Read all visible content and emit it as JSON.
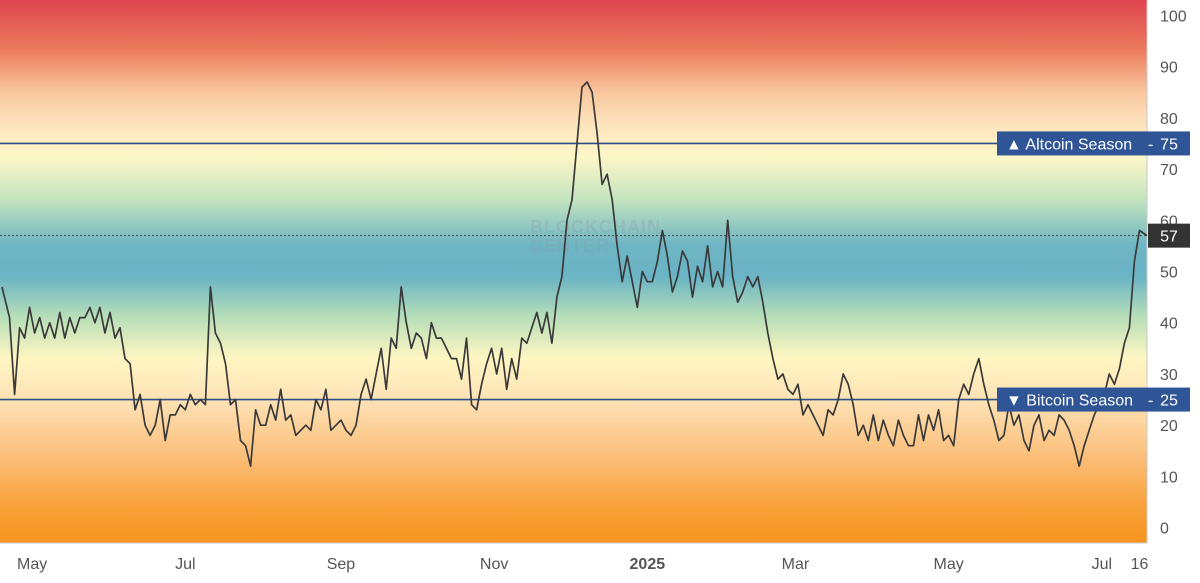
{
  "chart_data": {
    "type": "line",
    "x_start": "2024-04-19",
    "x_end": "2025-07-19",
    "ylim": [
      -3,
      103
    ],
    "y_ticks": [
      0,
      10,
      20,
      30,
      40,
      50,
      60,
      70,
      80,
      90,
      100
    ],
    "x_tick_labels": [
      {
        "date": "2024-05-01",
        "label": "May",
        "bold": false
      },
      {
        "date": "2024-07-01",
        "label": "Jul",
        "bold": false
      },
      {
        "date": "2024-09-01",
        "label": "Sep",
        "bold": false
      },
      {
        "date": "2024-11-01",
        "label": "Nov",
        "bold": false
      },
      {
        "date": "2025-01-01",
        "label": "2025",
        "bold": true
      },
      {
        "date": "2025-03-01",
        "label": "Mar",
        "bold": false
      },
      {
        "date": "2025-05-01",
        "label": "May",
        "bold": false
      },
      {
        "date": "2025-07-01",
        "label": "Jul",
        "bold": false
      },
      {
        "date": "2025-07-16",
        "label": "16",
        "bold": false
      }
    ],
    "thresholds": [
      {
        "name": "altcoin-season",
        "label": "▲ Altcoin Season",
        "value": 75,
        "value_label": "75"
      },
      {
        "name": "bitcoin-season",
        "label": "▼ Bitcoin Season",
        "value": 25,
        "value_label": "25"
      }
    ],
    "current_value": 57,
    "current_value_label": "57",
    "watermark": [
      "BLOCKCHAIN",
      "CENTER"
    ],
    "series": [
      {
        "points": [
          [
            "2024-04-19",
            47
          ],
          [
            "2024-04-22",
            41
          ],
          [
            "2024-04-24",
            26
          ],
          [
            "2024-04-26",
            39
          ],
          [
            "2024-04-28",
            37
          ],
          [
            "2024-04-30",
            43
          ],
          [
            "2024-05-02",
            38
          ],
          [
            "2024-05-04",
            41
          ],
          [
            "2024-05-06",
            37
          ],
          [
            "2024-05-08",
            40
          ],
          [
            "2024-05-10",
            37
          ],
          [
            "2024-05-12",
            42
          ],
          [
            "2024-05-14",
            37
          ],
          [
            "2024-05-16",
            41
          ],
          [
            "2024-05-18",
            38
          ],
          [
            "2024-05-20",
            41
          ],
          [
            "2024-05-22",
            41
          ],
          [
            "2024-05-24",
            43
          ],
          [
            "2024-05-26",
            40
          ],
          [
            "2024-05-28",
            43
          ],
          [
            "2024-05-30",
            38
          ],
          [
            "2024-06-01",
            42
          ],
          [
            "2024-06-03",
            37
          ],
          [
            "2024-06-05",
            39
          ],
          [
            "2024-06-07",
            33
          ],
          [
            "2024-06-09",
            32
          ],
          [
            "2024-06-11",
            23
          ],
          [
            "2024-06-13",
            26
          ],
          [
            "2024-06-15",
            20
          ],
          [
            "2024-06-17",
            18
          ],
          [
            "2024-06-19",
            20
          ],
          [
            "2024-06-21",
            25
          ],
          [
            "2024-06-23",
            17
          ],
          [
            "2024-06-25",
            22
          ],
          [
            "2024-06-27",
            22
          ],
          [
            "2024-06-29",
            24
          ],
          [
            "2024-07-01",
            23
          ],
          [
            "2024-07-03",
            26
          ],
          [
            "2024-07-05",
            24
          ],
          [
            "2024-07-07",
            25
          ],
          [
            "2024-07-09",
            24
          ],
          [
            "2024-07-11",
            47
          ],
          [
            "2024-07-13",
            38
          ],
          [
            "2024-07-15",
            36
          ],
          [
            "2024-07-17",
            32
          ],
          [
            "2024-07-19",
            24
          ],
          [
            "2024-07-21",
            25
          ],
          [
            "2024-07-23",
            17
          ],
          [
            "2024-07-25",
            16
          ],
          [
            "2024-07-27",
            12
          ],
          [
            "2024-07-29",
            23
          ],
          [
            "2024-07-31",
            20
          ],
          [
            "2024-08-02",
            20
          ],
          [
            "2024-08-04",
            24
          ],
          [
            "2024-08-06",
            21
          ],
          [
            "2024-08-08",
            27
          ],
          [
            "2024-08-10",
            21
          ],
          [
            "2024-08-12",
            22
          ],
          [
            "2024-08-14",
            18
          ],
          [
            "2024-08-16",
            19
          ],
          [
            "2024-08-18",
            20
          ],
          [
            "2024-08-20",
            19
          ],
          [
            "2024-08-22",
            25
          ],
          [
            "2024-08-24",
            23
          ],
          [
            "2024-08-26",
            27
          ],
          [
            "2024-08-28",
            19
          ],
          [
            "2024-08-30",
            20
          ],
          [
            "2024-09-01",
            21
          ],
          [
            "2024-09-03",
            19
          ],
          [
            "2024-09-05",
            18
          ],
          [
            "2024-09-07",
            20
          ],
          [
            "2024-09-09",
            26
          ],
          [
            "2024-09-11",
            29
          ],
          [
            "2024-09-13",
            25
          ],
          [
            "2024-09-15",
            30
          ],
          [
            "2024-09-17",
            35
          ],
          [
            "2024-09-19",
            27
          ],
          [
            "2024-09-21",
            37
          ],
          [
            "2024-09-23",
            35
          ],
          [
            "2024-09-25",
            47
          ],
          [
            "2024-09-27",
            40
          ],
          [
            "2024-09-29",
            35
          ],
          [
            "2024-10-01",
            38
          ],
          [
            "2024-10-03",
            37
          ],
          [
            "2024-10-05",
            33
          ],
          [
            "2024-10-07",
            40
          ],
          [
            "2024-10-09",
            37
          ],
          [
            "2024-10-11",
            37
          ],
          [
            "2024-10-13",
            35
          ],
          [
            "2024-10-15",
            33
          ],
          [
            "2024-10-17",
            33
          ],
          [
            "2024-10-19",
            29
          ],
          [
            "2024-10-21",
            37
          ],
          [
            "2024-10-23",
            24
          ],
          [
            "2024-10-25",
            23
          ],
          [
            "2024-10-27",
            28
          ],
          [
            "2024-10-29",
            32
          ],
          [
            "2024-10-31",
            35
          ],
          [
            "2024-11-02",
            30
          ],
          [
            "2024-11-04",
            35
          ],
          [
            "2024-11-06",
            27
          ],
          [
            "2024-11-08",
            33
          ],
          [
            "2024-11-10",
            29
          ],
          [
            "2024-11-12",
            37
          ],
          [
            "2024-11-14",
            36
          ],
          [
            "2024-11-16",
            39
          ],
          [
            "2024-11-18",
            42
          ],
          [
            "2024-11-20",
            38
          ],
          [
            "2024-11-22",
            42
          ],
          [
            "2024-11-24",
            36
          ],
          [
            "2024-11-26",
            45
          ],
          [
            "2024-11-28",
            49
          ],
          [
            "2024-11-30",
            60
          ],
          [
            "2024-12-02",
            64
          ],
          [
            "2024-12-04",
            75
          ],
          [
            "2024-12-06",
            86
          ],
          [
            "2024-12-08",
            87
          ],
          [
            "2024-12-10",
            85
          ],
          [
            "2024-12-12",
            77
          ],
          [
            "2024-12-14",
            67
          ],
          [
            "2024-12-16",
            69
          ],
          [
            "2024-12-18",
            64
          ],
          [
            "2024-12-20",
            55
          ],
          [
            "2024-12-22",
            48
          ],
          [
            "2024-12-24",
            53
          ],
          [
            "2024-12-26",
            48
          ],
          [
            "2024-12-28",
            43
          ],
          [
            "2024-12-30",
            50
          ],
          [
            "2025-01-01",
            48
          ],
          [
            "2025-01-03",
            48
          ],
          [
            "2025-01-05",
            52
          ],
          [
            "2025-01-07",
            58
          ],
          [
            "2025-01-09",
            53
          ],
          [
            "2025-01-11",
            46
          ],
          [
            "2025-01-13",
            49
          ],
          [
            "2025-01-15",
            54
          ],
          [
            "2025-01-17",
            52
          ],
          [
            "2025-01-19",
            45
          ],
          [
            "2025-01-21",
            51
          ],
          [
            "2025-01-23",
            48
          ],
          [
            "2025-01-25",
            55
          ],
          [
            "2025-01-27",
            47
          ],
          [
            "2025-01-29",
            50
          ],
          [
            "2025-01-31",
            47
          ],
          [
            "2025-02-02",
            60
          ],
          [
            "2025-02-04",
            49
          ],
          [
            "2025-02-06",
            44
          ],
          [
            "2025-02-08",
            46
          ],
          [
            "2025-02-10",
            49
          ],
          [
            "2025-02-12",
            47
          ],
          [
            "2025-02-14",
            49
          ],
          [
            "2025-02-16",
            44
          ],
          [
            "2025-02-18",
            38
          ],
          [
            "2025-02-20",
            33
          ],
          [
            "2025-02-22",
            29
          ],
          [
            "2025-02-24",
            30
          ],
          [
            "2025-02-26",
            27
          ],
          [
            "2025-02-28",
            26
          ],
          [
            "2025-03-02",
            28
          ],
          [
            "2025-03-04",
            22
          ],
          [
            "2025-03-06",
            24
          ],
          [
            "2025-03-08",
            22
          ],
          [
            "2025-03-10",
            20
          ],
          [
            "2025-03-12",
            18
          ],
          [
            "2025-03-14",
            23
          ],
          [
            "2025-03-16",
            22
          ],
          [
            "2025-03-18",
            25
          ],
          [
            "2025-03-20",
            30
          ],
          [
            "2025-03-22",
            28
          ],
          [
            "2025-03-24",
            24
          ],
          [
            "2025-03-26",
            18
          ],
          [
            "2025-03-28",
            20
          ],
          [
            "2025-03-30",
            17
          ],
          [
            "2025-04-01",
            22
          ],
          [
            "2025-04-03",
            17
          ],
          [
            "2025-04-05",
            21
          ],
          [
            "2025-04-07",
            18
          ],
          [
            "2025-04-09",
            16
          ],
          [
            "2025-04-11",
            21
          ],
          [
            "2025-04-13",
            18
          ],
          [
            "2025-04-15",
            16
          ],
          [
            "2025-04-17",
            16
          ],
          [
            "2025-04-19",
            22
          ],
          [
            "2025-04-21",
            17
          ],
          [
            "2025-04-23",
            22
          ],
          [
            "2025-04-25",
            19
          ],
          [
            "2025-04-27",
            23
          ],
          [
            "2025-04-29",
            17
          ],
          [
            "2025-05-01",
            18
          ],
          [
            "2025-05-03",
            16
          ],
          [
            "2025-05-05",
            25
          ],
          [
            "2025-05-07",
            28
          ],
          [
            "2025-05-09",
            26
          ],
          [
            "2025-05-11",
            30
          ],
          [
            "2025-05-13",
            33
          ],
          [
            "2025-05-15",
            28
          ],
          [
            "2025-05-17",
            24
          ],
          [
            "2025-05-19",
            21
          ],
          [
            "2025-05-21",
            17
          ],
          [
            "2025-05-23",
            18
          ],
          [
            "2025-05-25",
            24
          ],
          [
            "2025-05-27",
            20
          ],
          [
            "2025-05-29",
            22
          ],
          [
            "2025-05-31",
            17
          ],
          [
            "2025-06-02",
            15
          ],
          [
            "2025-06-04",
            20
          ],
          [
            "2025-06-06",
            22
          ],
          [
            "2025-06-08",
            17
          ],
          [
            "2025-06-10",
            19
          ],
          [
            "2025-06-12",
            18
          ],
          [
            "2025-06-14",
            22
          ],
          [
            "2025-06-16",
            21
          ],
          [
            "2025-06-18",
            19
          ],
          [
            "2025-06-20",
            16
          ],
          [
            "2025-06-22",
            12
          ],
          [
            "2025-06-24",
            16
          ],
          [
            "2025-06-26",
            19
          ],
          [
            "2025-06-28",
            22
          ],
          [
            "2025-06-30",
            24
          ],
          [
            "2025-07-02",
            26
          ],
          [
            "2025-07-04",
            30
          ],
          [
            "2025-07-06",
            28
          ],
          [
            "2025-07-08",
            31
          ],
          [
            "2025-07-10",
            36
          ],
          [
            "2025-07-12",
            39
          ],
          [
            "2025-07-14",
            52
          ],
          [
            "2025-07-16",
            58
          ],
          [
            "2025-07-19",
            57
          ]
        ]
      }
    ]
  }
}
